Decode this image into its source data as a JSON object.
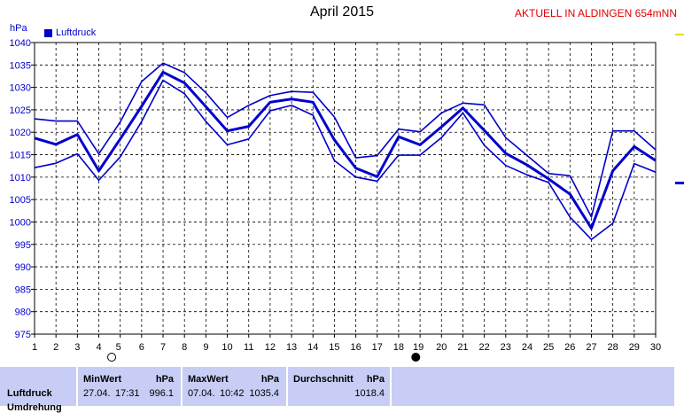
{
  "header": {
    "title": "April 2015",
    "subtitle": "AKTUELL IN ALDINGEN 654mNN",
    "unit": "hPa",
    "legend": "Luftdruck"
  },
  "stats": {
    "row_label": "Luftdruck",
    "row_label_2": "Umdrehung",
    "min_header": "MinWert",
    "min_unit": "hPa",
    "min_date": "27.04.",
    "min_time": "17:31",
    "min_value": "996.1",
    "max_header": "MaxWert",
    "max_unit": "hPa",
    "max_date": "07.04.",
    "max_time": "10:42",
    "max_value": "1035.4",
    "avg_header": "Durchschnitt",
    "avg_unit": "hPa",
    "avg_value": "1018.4"
  },
  "colors": {
    "line": "#0000cc",
    "grid": "#000000",
    "subtitle": "#e00000",
    "stats_bg": "#c8cdf5"
  },
  "chart_data": {
    "type": "line",
    "x": [
      1,
      2,
      3,
      4,
      5,
      6,
      7,
      8,
      9,
      10,
      11,
      12,
      13,
      14,
      15,
      16,
      17,
      18,
      19,
      20,
      21,
      22,
      23,
      24,
      25,
      26,
      27,
      28,
      29,
      30
    ],
    "xticks": [
      "1",
      "2",
      "3",
      "4",
      "5",
      "6",
      "7",
      "8",
      "9",
      "10",
      "11",
      "12",
      "13",
      "14",
      "15",
      "16",
      "17",
      "18",
      "19",
      "20",
      "21",
      "22",
      "23",
      "24",
      "25",
      "26",
      "27",
      "28",
      "29",
      "30"
    ],
    "xticks_offset": [
      "5",
      "19"
    ],
    "moon_markers": [
      {
        "label": "full-moon",
        "x": 4.6
      },
      {
        "label": "new-moon",
        "x": 18.8
      }
    ],
    "ylim": [
      975,
      1040
    ],
    "yticks": [
      975,
      980,
      985,
      990,
      995,
      1000,
      1005,
      1010,
      1015,
      1020,
      1025,
      1030,
      1035,
      1040
    ],
    "grid": true,
    "legend_position": "top-left",
    "series": [
      {
        "name": "max",
        "values": [
          1023.0,
          1022.5,
          1022.5,
          1015.2,
          1022.3,
          1031.3,
          1035.4,
          1033.3,
          1028.8,
          1023.3,
          1026.0,
          1028.2,
          1029.1,
          1028.9,
          1023.4,
          1014.3,
          1014.8,
          1020.7,
          1020.1,
          1024.3,
          1026.5,
          1026.1,
          1018.8,
          1014.8,
          1010.8,
          1010.3,
          1001.1,
          1020.3,
          1020.3,
          1016.1
        ]
      },
      {
        "name": "avg",
        "values": [
          1018.7,
          1017.3,
          1019.5,
          1011.4,
          1018.5,
          1025.8,
          1033.4,
          1031.0,
          1025.7,
          1020.3,
          1021.3,
          1026.7,
          1027.4,
          1026.7,
          1018.3,
          1012.0,
          1010.1,
          1019.0,
          1017.2,
          1021.2,
          1025.4,
          1020.4,
          1015.3,
          1012.7,
          1009.6,
          1006.2,
          998.6,
          1011.4,
          1016.8,
          1013.7
        ]
      },
      {
        "name": "min",
        "values": [
          1012.1,
          1013.1,
          1015.2,
          1009.3,
          1014.5,
          1022.4,
          1031.6,
          1028.6,
          1022.4,
          1017.2,
          1018.5,
          1024.8,
          1026.0,
          1023.8,
          1013.7,
          1010.0,
          1009.1,
          1014.9,
          1014.9,
          1018.8,
          1024.3,
          1017.1,
          1012.6,
          1010.5,
          1008.8,
          1001.1,
          996.1,
          999.7,
          1013.0,
          1011.1
        ]
      }
    ]
  }
}
